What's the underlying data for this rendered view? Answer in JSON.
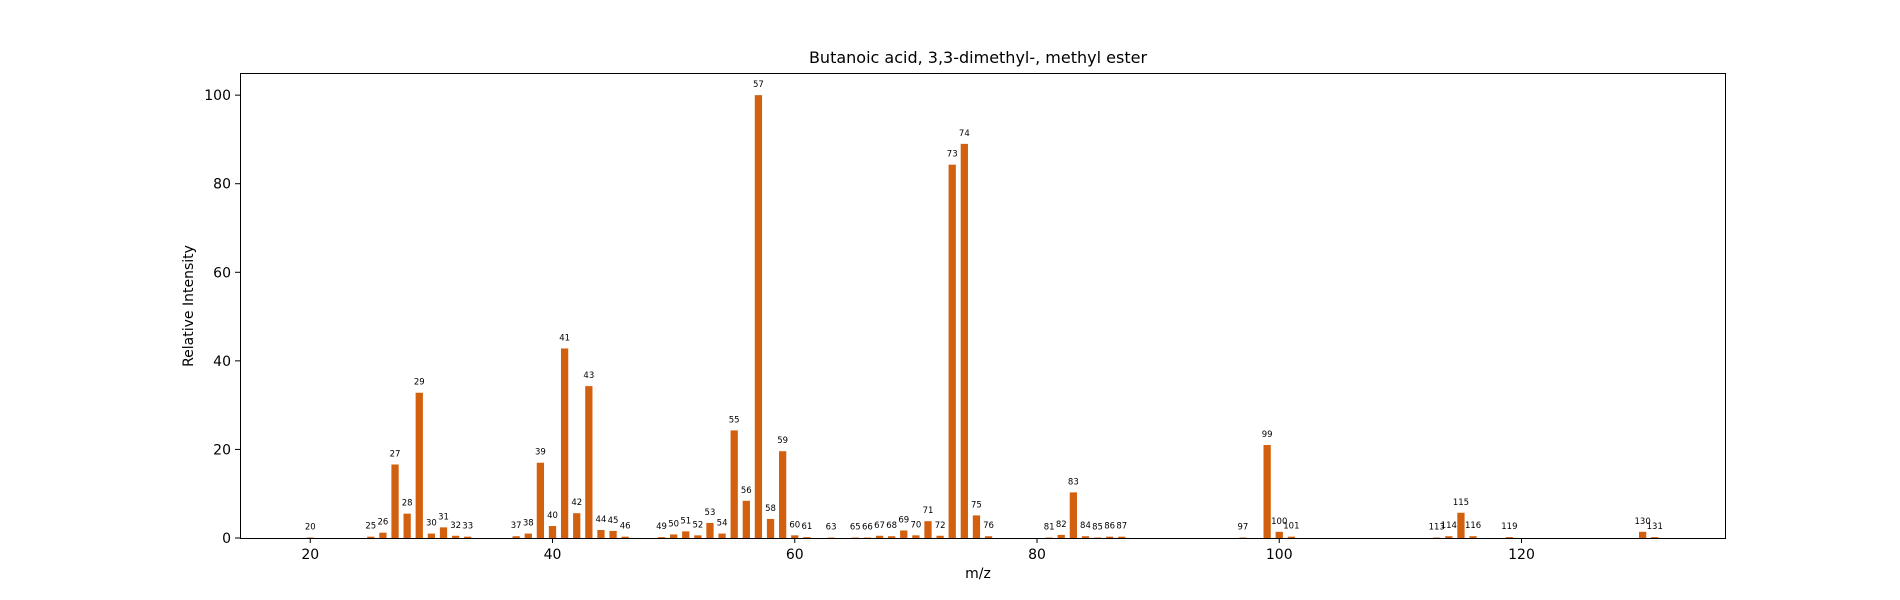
{
  "chart_data": {
    "type": "bar",
    "title": "Butanoic acid, 3,3-dimethyl-, methyl ester",
    "xlabel": "m/z",
    "ylabel": "Relative Intensity",
    "xlim": [
      14.2,
      136.8
    ],
    "ylim": [
      0,
      105
    ],
    "xticks": [
      20,
      40,
      60,
      80,
      100,
      120
    ],
    "yticks": [
      0,
      20,
      40,
      60,
      80,
      100
    ],
    "grid": false,
    "bar_color": "#d2600f",
    "peaks": [
      {
        "mz": 20,
        "intensity": 0.1
      },
      {
        "mz": 25,
        "intensity": 0.3
      },
      {
        "mz": 26,
        "intensity": 1.2
      },
      {
        "mz": 27,
        "intensity": 16.6
      },
      {
        "mz": 28,
        "intensity": 5.5
      },
      {
        "mz": 29,
        "intensity": 32.8
      },
      {
        "mz": 30,
        "intensity": 1.0
      },
      {
        "mz": 31,
        "intensity": 2.4
      },
      {
        "mz": 32,
        "intensity": 0.5
      },
      {
        "mz": 33,
        "intensity": 0.3
      },
      {
        "mz": 37,
        "intensity": 0.4
      },
      {
        "mz": 38,
        "intensity": 1.0
      },
      {
        "mz": 39,
        "intensity": 17.0
      },
      {
        "mz": 40,
        "intensity": 2.7
      },
      {
        "mz": 41,
        "intensity": 42.8
      },
      {
        "mz": 42,
        "intensity": 5.6
      },
      {
        "mz": 43,
        "intensity": 34.3
      },
      {
        "mz": 44,
        "intensity": 1.8
      },
      {
        "mz": 45,
        "intensity": 1.6
      },
      {
        "mz": 46,
        "intensity": 0.3
      },
      {
        "mz": 49,
        "intensity": 0.2
      },
      {
        "mz": 50,
        "intensity": 0.8
      },
      {
        "mz": 51,
        "intensity": 1.5
      },
      {
        "mz": 52,
        "intensity": 0.6
      },
      {
        "mz": 53,
        "intensity": 3.4
      },
      {
        "mz": 54,
        "intensity": 1.0
      },
      {
        "mz": 55,
        "intensity": 24.3
      },
      {
        "mz": 56,
        "intensity": 8.4
      },
      {
        "mz": 57,
        "intensity": 100.0
      },
      {
        "mz": 58,
        "intensity": 4.3
      },
      {
        "mz": 59,
        "intensity": 19.6
      },
      {
        "mz": 60,
        "intensity": 0.6
      },
      {
        "mz": 61,
        "intensity": 0.2
      },
      {
        "mz": 63,
        "intensity": 0.1
      },
      {
        "mz": 65,
        "intensity": 0.1
      },
      {
        "mz": 66,
        "intensity": 0.1
      },
      {
        "mz": 67,
        "intensity": 0.5
      },
      {
        "mz": 68,
        "intensity": 0.4
      },
      {
        "mz": 69,
        "intensity": 1.7
      },
      {
        "mz": 70,
        "intensity": 0.6
      },
      {
        "mz": 71,
        "intensity": 3.8
      },
      {
        "mz": 72,
        "intensity": 0.5
      },
      {
        "mz": 73,
        "intensity": 84.3
      },
      {
        "mz": 74,
        "intensity": 89.0
      },
      {
        "mz": 75,
        "intensity": 5.1
      },
      {
        "mz": 76,
        "intensity": 0.4
      },
      {
        "mz": 81,
        "intensity": 0.1
      },
      {
        "mz": 82,
        "intensity": 0.7
      },
      {
        "mz": 83,
        "intensity": 10.3
      },
      {
        "mz": 84,
        "intensity": 0.4
      },
      {
        "mz": 85,
        "intensity": 0.1
      },
      {
        "mz": 86,
        "intensity": 0.3
      },
      {
        "mz": 87,
        "intensity": 0.3
      },
      {
        "mz": 97,
        "intensity": 0.1
      },
      {
        "mz": 99,
        "intensity": 21.0
      },
      {
        "mz": 100,
        "intensity": 1.4
      },
      {
        "mz": 101,
        "intensity": 0.3
      },
      {
        "mz": 113,
        "intensity": 0.1
      },
      {
        "mz": 114,
        "intensity": 0.4
      },
      {
        "mz": 115,
        "intensity": 5.7
      },
      {
        "mz": 116,
        "intensity": 0.4
      },
      {
        "mz": 119,
        "intensity": 0.2
      },
      {
        "mz": 130,
        "intensity": 1.4
      },
      {
        "mz": 131,
        "intensity": 0.2
      }
    ]
  }
}
